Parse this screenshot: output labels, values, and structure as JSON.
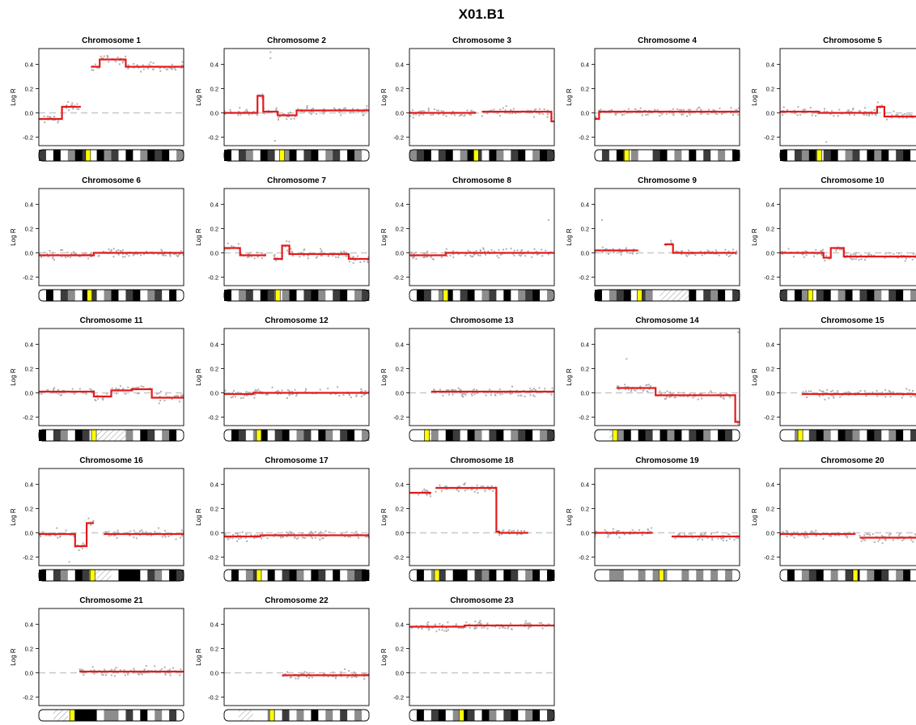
{
  "page": {
    "title": "X01.B1"
  },
  "chart_data": {
    "type": "scatter",
    "title": "X01.B1",
    "ylabel": "Log R",
    "ylim": [
      -0.27,
      0.53
    ],
    "yticks": [
      -0.2,
      0.0,
      0.2,
      0.4
    ],
    "ytick_labels": [
      "-0.2",
      "0.0",
      "0.2",
      "0.4"
    ],
    "grid": false,
    "legend": "none",
    "colors": {
      "points": "#b0b0b0",
      "segments": "#e41a1c",
      "baseline": "#c8c8c8",
      "centromere": "#ffff00"
    },
    "panels": [
      {
        "title": "Chromosome 1",
        "segments": [
          [
            0,
            0.16,
            -0.05
          ],
          [
            0.16,
            0.29,
            0.05
          ],
          [
            0.36,
            0.42,
            0.38
          ],
          [
            0.42,
            0.6,
            0.44
          ],
          [
            0.6,
            1.0,
            0.38
          ]
        ],
        "point_gaps": [
          [
            0.29,
            0.36
          ]
        ],
        "outliers": [],
        "ideogram": {
          "centromere": 0.34,
          "cells": "bwkwgkbwkgbwkwgkbkwg"
        }
      },
      {
        "title": "Chromosome 2",
        "segments": [
          [
            0,
            0.23,
            0
          ],
          [
            0.23,
            0.27,
            0.14
          ],
          [
            0.27,
            0.37,
            0.01
          ],
          [
            0.37,
            0.5,
            -0.02
          ],
          [
            0.5,
            1.0,
            0.02
          ]
        ],
        "point_gaps": [],
        "outliers": [
          [
            0.32,
            0.5
          ],
          [
            0.32,
            0.45
          ],
          [
            0.35,
            -0.23
          ]
        ],
        "ideogram": {
          "centromere": 0.4,
          "cells": "kwbgwkbwgkwbkwgbwkgw"
        }
      },
      {
        "title": "Chromosome 3",
        "segments": [
          [
            0,
            0.46,
            0
          ],
          [
            0.5,
            0.98,
            0.01
          ],
          [
            0.98,
            1.0,
            -0.07
          ]
        ],
        "point_gaps": [],
        "outliers": [],
        "ideogram": {
          "centromere": 0.46,
          "cells": "gbkwbkwgkbwkgwbkwgkb"
        }
      },
      {
        "title": "Chromosome 4",
        "segments": [
          [
            0,
            0.03,
            -0.05
          ],
          [
            0.03,
            1.0,
            0.01
          ]
        ],
        "point_gaps": [],
        "outliers": [],
        "ideogram": {
          "centromere": 0.22,
          "cells": "wbwkwgwwbkwgwkwbwgwk"
        }
      },
      {
        "title": "Chromosome 5",
        "segments": [
          [
            0,
            0.27,
            0.01
          ],
          [
            0.27,
            0.67,
            0
          ],
          [
            0.67,
            0.72,
            0.05
          ],
          [
            0.72,
            1.0,
            -0.03
          ]
        ],
        "point_gaps": [],
        "outliers": [
          [
            0.32,
            -0.24
          ]
        ],
        "ideogram": {
          "centromere": 0.27,
          "cells": "kwbgkwbkwgbwkgkwbkwg"
        }
      },
      {
        "title": "Chromosome 6",
        "segments": [
          [
            0,
            0.38,
            -0.02
          ],
          [
            0.38,
            1.0,
            0
          ]
        ],
        "point_gaps": [],
        "outliers": [],
        "ideogram": {
          "centromere": 0.35,
          "cells": "wkwbgwkbwgkwbkwgbwkw"
        }
      },
      {
        "title": "Chromosome 7",
        "segments": [
          [
            0,
            0.11,
            0.04
          ],
          [
            0.11,
            0.29,
            -0.02
          ],
          [
            0.34,
            0.4,
            -0.05
          ],
          [
            0.4,
            0.45,
            0.06
          ],
          [
            0.45,
            0.86,
            -0.01
          ],
          [
            0.86,
            1.0,
            -0.05
          ]
        ],
        "point_gaps": [
          [
            0.29,
            0.34
          ]
        ],
        "outliers": [],
        "ideogram": {
          "centromere": 0.37,
          "cells": "kwgbwkbwgkwbkgwbkwgb"
        }
      },
      {
        "title": "Chromosome 8",
        "segments": [
          [
            0,
            0.25,
            -0.02
          ],
          [
            0.25,
            1.0,
            0
          ]
        ],
        "point_gaps": [],
        "outliers": [
          [
            0.96,
            0.27
          ]
        ],
        "ideogram": {
          "centromere": 0.25,
          "cells": "wkbwgkwbkwgbwkwgbkwg"
        }
      },
      {
        "title": "Chromosome 9",
        "segments": [
          [
            0,
            0.3,
            0.02
          ],
          [
            0.48,
            0.54,
            0.07
          ],
          [
            0.54,
            0.98,
            0
          ]
        ],
        "point_gaps": [
          [
            0.3,
            0.48
          ]
        ],
        "outliers": [
          [
            0.05,
            0.27
          ]
        ],
        "ideogram": {
          "centromere": 0.31,
          "cells": "kwgbkwbgwhhhhkwbgkwb"
        }
      },
      {
        "title": "Chromosome 10",
        "segments": [
          [
            0,
            0.3,
            0
          ],
          [
            0.3,
            0.35,
            -0.04
          ],
          [
            0.35,
            0.44,
            0.04
          ],
          [
            0.44,
            1.0,
            -0.03
          ]
        ],
        "point_gaps": [],
        "outliers": [],
        "ideogram": {
          "centromere": 0.21,
          "cells": "bwkgwbkwgkwbkgwbkwgk"
        }
      },
      {
        "title": "Chromosome 11",
        "segments": [
          [
            0,
            0.38,
            0.01
          ],
          [
            0.38,
            0.5,
            -0.03
          ],
          [
            0.5,
            0.64,
            0.02
          ],
          [
            0.64,
            0.78,
            0.03
          ],
          [
            0.78,
            1.0,
            -0.04
          ]
        ],
        "point_gaps": [],
        "outliers": [],
        "ideogram": {
          "centromere": 0.38,
          "cells": "kwbgwkbwhhhhgwkbwgkw"
        }
      },
      {
        "title": "Chromosome 12",
        "segments": [
          [
            0,
            0.2,
            -0.01
          ],
          [
            0.2,
            1.0,
            0
          ]
        ],
        "point_gaps": [],
        "outliers": [],
        "ideogram": {
          "centromere": 0.24,
          "cells": "wkbwgkwbkwgbwkgwbkwg"
        }
      },
      {
        "title": "Chromosome 13",
        "segments": [
          [
            0.15,
            1.0,
            0.01
          ]
        ],
        "point_gaps": [
          [
            0,
            0.15
          ]
        ],
        "outliers": [],
        "ideogram": {
          "centromere": 0.12,
          "cells": "xxhgwkbwkgwbkwgbkwgb"
        }
      },
      {
        "title": "Chromosome 14",
        "segments": [
          [
            0.15,
            0.42,
            0.04
          ],
          [
            0.42,
            0.97,
            -0.02
          ],
          [
            0.97,
            1.0,
            -0.24
          ]
        ],
        "point_gaps": [
          [
            0,
            0.15
          ]
        ],
        "outliers": [
          [
            0.22,
            0.28
          ],
          [
            0.99,
            0.5
          ]
        ],
        "ideogram": {
          "centromere": 0.14,
          "cells": "xxhgkwkbwkgkwbkgwkbw"
        }
      },
      {
        "title": "Chromosome 15",
        "segments": [
          [
            0.15,
            1.0,
            -0.01
          ]
        ],
        "point_gaps": [
          [
            0,
            0.15
          ]
        ],
        "outliers": [],
        "ideogram": {
          "centromere": 0.14,
          "cells": "xxgwbkgwkbgwkbwgkwbg"
        }
      },
      {
        "title": "Chromosome 16",
        "segments": [
          [
            0,
            0.25,
            -0.01
          ],
          [
            0.25,
            0.33,
            -0.11
          ],
          [
            0.33,
            0.38,
            0.08
          ],
          [
            0.45,
            1.0,
            -0.01
          ]
        ],
        "point_gaps": [
          [
            0.38,
            0.45
          ]
        ],
        "outliers": [
          [
            0.21,
            -0.24
          ]
        ],
        "ideogram": {
          "centromere": 0.37,
          "cells": "kwbgwkbhhhwkkkwbgwkb"
        }
      },
      {
        "title": "Chromosome 17",
        "segments": [
          [
            0,
            0.25,
            -0.03
          ],
          [
            0.25,
            1.0,
            -0.02
          ]
        ],
        "point_gaps": [],
        "outliers": [],
        "ideogram": {
          "centromere": 0.24,
          "cells": "wkwgbwkwbkgwkbwkwgbk"
        }
      },
      {
        "title": "Chromosome 18",
        "segments": [
          [
            0,
            0.15,
            0.33
          ],
          [
            0.18,
            0.59,
            0.37
          ],
          [
            0.59,
            0.6,
            0.37
          ],
          [
            0.6,
            0.62,
            0.01
          ],
          [
            0.62,
            0.82,
            0
          ]
        ],
        "point_gaps": [
          [
            0.15,
            0.18
          ],
          [
            0.82,
            1.0
          ]
        ],
        "outliers": [],
        "ideogram": {
          "centromere": 0.19,
          "cells": "wkwgbwkkwbgkwkbwgkwk"
        }
      },
      {
        "title": "Chromosome 19",
        "segments": [
          [
            0,
            0.4,
            0
          ],
          [
            0.53,
            1.0,
            -0.03
          ]
        ],
        "point_gaps": [
          [
            0.4,
            0.53
          ]
        ],
        "outliers": [],
        "ideogram": {
          "centromere": 0.46,
          "cells": "wwggwwgwggwwgwgwgwgw"
        }
      },
      {
        "title": "Chromosome 20",
        "segments": [
          [
            0,
            0.52,
            -0.01
          ],
          [
            0.55,
            1.0,
            -0.04
          ]
        ],
        "point_gaps": [],
        "outliers": [],
        "ideogram": {
          "centromere": 0.52,
          "cells": "wkwgbkwgwbkwgkbwgkwb"
        }
      },
      {
        "title": "Chromosome 21",
        "segments": [
          [
            0.28,
            1.0,
            0.01
          ]
        ],
        "point_gaps": [
          [
            0,
            0.28
          ]
        ],
        "outliers": [],
        "ideogram": {
          "centromere": 0.23,
          "cells": "xxhhwkkkwggwbwkwgwbw"
        }
      },
      {
        "title": "Chromosome 22",
        "segments": [
          [
            0.4,
            1.0,
            -0.02
          ]
        ],
        "point_gaps": [
          [
            0,
            0.4
          ]
        ],
        "outliers": [],
        "ideogram": {
          "centromere": 0.33,
          "cells": "xxhhwwgwbwgwkwgwbwgw"
        }
      },
      {
        "title": "Chromosome 23",
        "segments": [
          [
            0,
            0.38,
            0.38
          ],
          [
            0.38,
            1.0,
            0.39
          ]
        ],
        "point_gaps": [],
        "outliers": [],
        "ideogram": {
          "centromere": 0.36,
          "cells": "wkwbkwgkbwkgwbkwgkwb"
        }
      }
    ]
  }
}
